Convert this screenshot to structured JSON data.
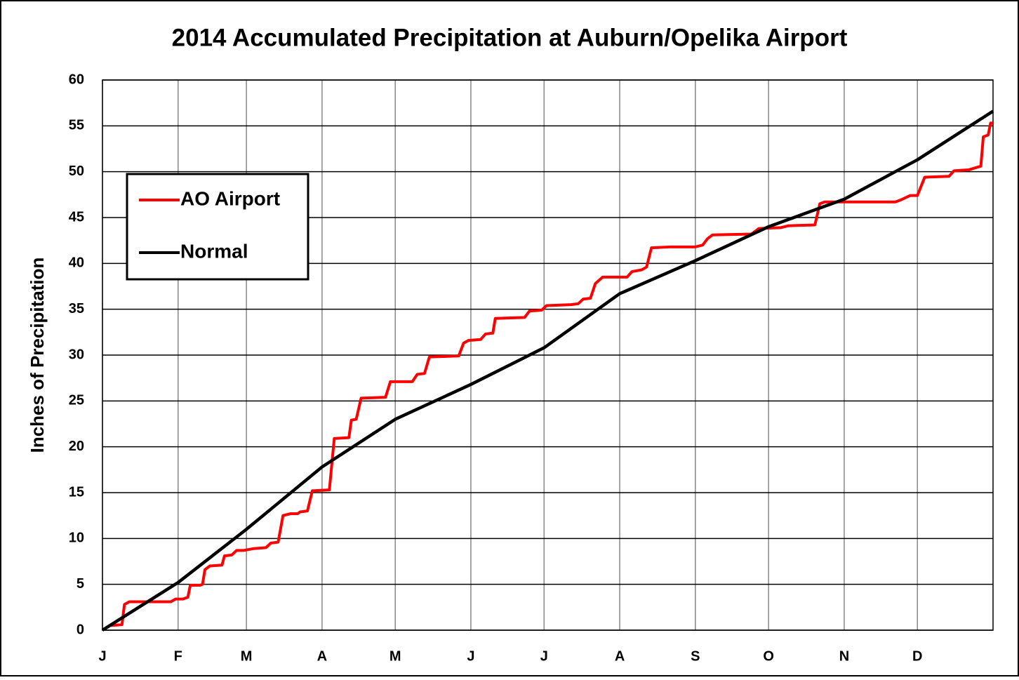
{
  "chart_data": {
    "type": "line",
    "title": "2014 Accumulated Precipitation at Auburn/Opelika Airport",
    "y_label": "Inches of Precipitation",
    "xlim": [
      0,
      365
    ],
    "xticks": [
      {
        "value": 0,
        "label": "J"
      },
      {
        "value": 31,
        "label": "F"
      },
      {
        "value": 59,
        "label": "M"
      },
      {
        "value": 90,
        "label": "A"
      },
      {
        "value": 120,
        "label": "M"
      },
      {
        "value": 151,
        "label": "J"
      },
      {
        "value": 181,
        "label": "J"
      },
      {
        "value": 212,
        "label": "A"
      },
      {
        "value": 243,
        "label": "S"
      },
      {
        "value": 273,
        "label": "O"
      },
      {
        "value": 304,
        "label": "N"
      },
      {
        "value": 334,
        "label": "D"
      }
    ],
    "ylim": [
      0,
      60
    ],
    "yticks": [
      0,
      5,
      10,
      15,
      20,
      25,
      30,
      35,
      40,
      45,
      50,
      55,
      60
    ],
    "grid": true,
    "legend": "upper left",
    "series": [
      {
        "name": "AO Airport",
        "color": "#ff0000",
        "x": [
          0,
          3,
          8,
          9,
          11,
          13,
          28,
          30,
          33,
          35,
          36,
          40,
          41,
          42,
          44,
          49,
          50,
          53,
          55,
          58,
          62,
          67,
          69,
          72,
          74,
          77,
          80,
          81,
          84,
          86,
          93,
          95,
          101,
          102,
          104,
          106,
          116,
          118,
          127,
          129,
          132,
          134,
          146,
          148,
          150,
          155,
          157,
          160,
          161,
          173,
          175,
          180,
          182,
          192,
          195,
          197,
          200,
          202,
          205,
          215,
          217,
          221,
          223,
          225,
          233,
          243,
          246,
          248,
          250,
          266,
          269,
          278,
          281,
          292,
          294,
          296,
          325,
          327,
          331,
          334,
          337,
          347,
          349,
          355,
          360,
          361,
          363,
          364,
          365
        ],
        "values": [
          0,
          0.5,
          0.6,
          2.8,
          3.1,
          3.1,
          3.1,
          3.4,
          3.4,
          3.6,
          4.9,
          4.9,
          5.0,
          6.6,
          7.0,
          7.1,
          8.1,
          8.2,
          8.7,
          8.7,
          8.9,
          9.0,
          9.5,
          9.6,
          12.5,
          12.7,
          12.7,
          12.9,
          13.0,
          15.2,
          15.3,
          20.9,
          21.0,
          22.9,
          23.0,
          25.3,
          25.4,
          27.1,
          27.1,
          27.9,
          28.0,
          29.8,
          29.9,
          31.3,
          31.6,
          31.7,
          32.3,
          32.4,
          34.0,
          34.1,
          34.8,
          34.9,
          35.4,
          35.5,
          35.6,
          36.1,
          36.2,
          37.8,
          38.5,
          38.5,
          39.1,
          39.3,
          39.6,
          41.7,
          41.8,
          41.8,
          42.0,
          42.7,
          43.1,
          43.2,
          43.8,
          43.9,
          44.1,
          44.2,
          46.5,
          46.7,
          46.7,
          46.9,
          47.4,
          47.4,
          49.4,
          49.5,
          50.1,
          50.2,
          50.6,
          53.8,
          54.0,
          55.3,
          55.3
        ]
      },
      {
        "name": "Normal",
        "color": "#000000",
        "x": [
          0,
          31,
          59,
          90,
          120,
          151,
          181,
          212,
          243,
          273,
          304,
          334,
          365
        ],
        "values": [
          0,
          5.2,
          11,
          17.8,
          23,
          26.8,
          30.8,
          36.7,
          40.3,
          44,
          47,
          51.3,
          56.6
        ]
      }
    ]
  }
}
